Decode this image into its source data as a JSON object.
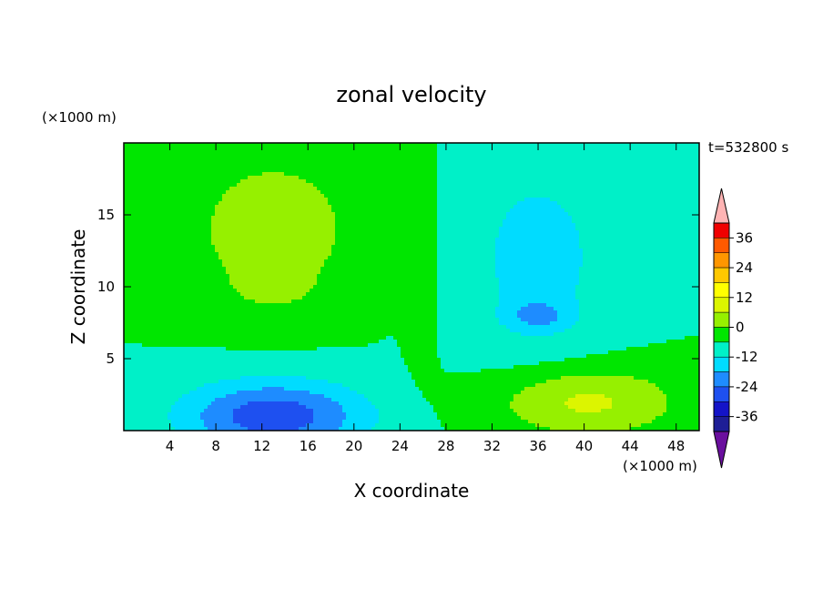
{
  "chart_data": {
    "type": "heatmap",
    "title": "zonal velocity",
    "xlabel": "X coordinate",
    "ylabel": "Z coordinate",
    "x_unit": "(×1000 m)",
    "y_unit": "(×1000 m)",
    "time_label": "t=532800 s",
    "xlim": [
      0,
      50
    ],
    "ylim": [
      0,
      20
    ],
    "x_ticks": [
      4,
      8,
      12,
      16,
      20,
      24,
      28,
      32,
      36,
      40,
      44,
      48
    ],
    "y_ticks": [
      5,
      10,
      15
    ],
    "colorbar": {
      "levels": [
        -42,
        -36,
        -30,
        -24,
        -18,
        -12,
        -6,
        0,
        6,
        12,
        18,
        24,
        30,
        36,
        42
      ],
      "tick_labels": [
        "36",
        "24",
        "12",
        "0",
        "-12",
        "-24",
        "-36"
      ],
      "colors": [
        "#6a0f9e",
        "#1e1e96",
        "#1414c8",
        "#1e50f0",
        "#1e8cff",
        "#00dcff",
        "#00f0c8",
        "#00e600",
        "#96f000",
        "#dcf500",
        "#ffff00",
        "#ffc800",
        "#ff9600",
        "#ff5a00",
        "#f00000",
        "#ffb4b4"
      ],
      "under_color": "#800080",
      "over_color": "#ffaaaa"
    },
    "field_features": [
      {
        "type": "background",
        "value": 0
      },
      {
        "x": 13,
        "z": 14,
        "sx": 7,
        "sz": 5,
        "value": 11
      },
      {
        "x": 13,
        "z": 10,
        "sx": 3,
        "sz": 1.2,
        "value": 6
      },
      {
        "x": 26,
        "z": 12,
        "sx": 1.5,
        "sz": 8,
        "value": 3
      },
      {
        "x": 36,
        "z": 12,
        "sx": 7,
        "sz": 8,
        "value": -8
      },
      {
        "x": 36,
        "z": 8,
        "sx": 2.5,
        "sz": 1,
        "value": -10
      },
      {
        "x": 13,
        "z": 1,
        "sx": 8,
        "sz": 2.5,
        "value": -22
      },
      {
        "x": 40,
        "z": 2,
        "sx": 8,
        "sz": 2.5,
        "value": 14
      }
    ]
  }
}
